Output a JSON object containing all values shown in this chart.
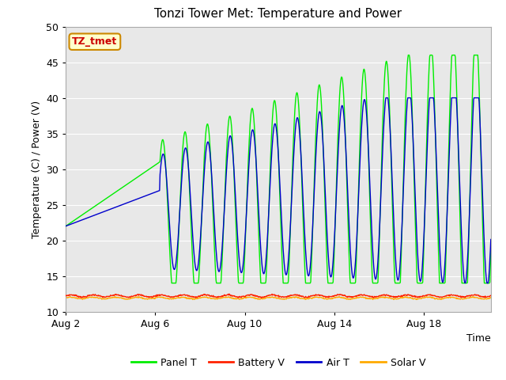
{
  "title": "Tonzi Tower Met: Temperature and Power",
  "xlabel": "Time",
  "ylabel": "Temperature (C) / Power (V)",
  "ylim": [
    10,
    50
  ],
  "xlim_days": [
    0,
    19
  ],
  "xtick_labels": [
    "Aug 2",
    "Aug 6",
    "Aug 10",
    "Aug 14",
    "Aug 18"
  ],
  "xtick_positions": [
    0,
    4,
    8,
    12,
    16
  ],
  "legend_labels": [
    "Panel T",
    "Battery V",
    "Air T",
    "Solar V"
  ],
  "legend_colors": [
    "#00ee00",
    "#ff2200",
    "#0000cc",
    "#ffaa00"
  ],
  "annotation_text": "TZ_tmet",
  "annotation_bg": "#ffffcc",
  "annotation_border": "#cc8800",
  "annotation_text_color": "#cc0000",
  "panel_t_color": "#00ee00",
  "battery_v_color": "#ff2200",
  "air_t_color": "#0000cc",
  "solar_v_color": "#ffaa00",
  "background_color": "#e8e8e8",
  "grid_color": "#ffffff"
}
